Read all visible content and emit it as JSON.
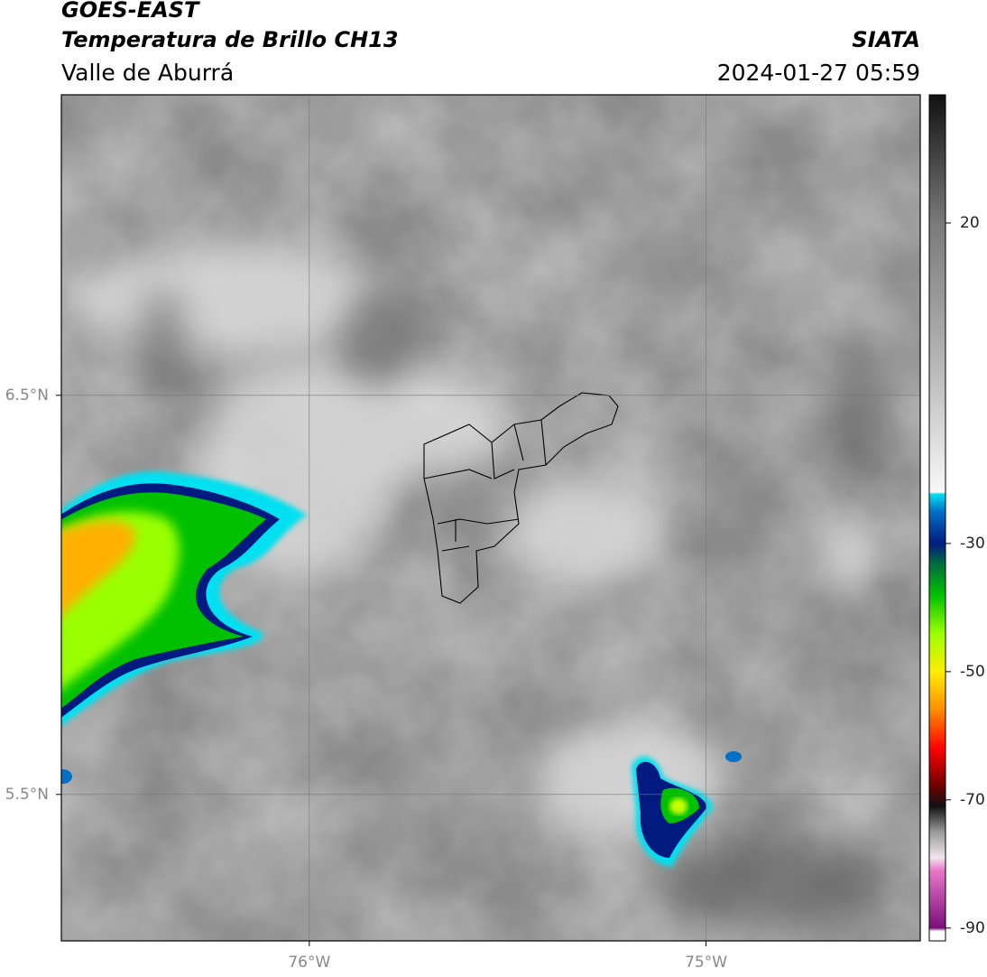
{
  "header": {
    "title": "GOES-EAST",
    "subtitle": "Temperatura de Brillo CH13",
    "region": "Valle de Aburrá",
    "source": "SIATA",
    "datetime": "2024-01-27 05:59"
  },
  "map": {
    "xlim": [
      -76.625,
      -74.46
    ],
    "ylim": [
      5.133,
      7.253
    ],
    "xticks": [
      {
        "value": -76,
        "label": "76°W"
      },
      {
        "value": -75,
        "label": "75°W"
      }
    ],
    "yticks": [
      {
        "value": 6.5,
        "label": "6.5°N"
      },
      {
        "value": 5.5,
        "label": "5.5°N"
      }
    ],
    "grid": true
  },
  "colorbar": {
    "lim": [
      -92,
      40
    ],
    "ticks": [
      20,
      -30,
      -50,
      -70,
      -90
    ],
    "stops": [
      {
        "value": -92,
        "color": "#ffffff"
      },
      {
        "value": -90.5,
        "color": "#ffffff"
      },
      {
        "value": -90,
        "color": "#7a0f7a"
      },
      {
        "value": -81,
        "color": "#e878c8"
      },
      {
        "value": -79,
        "color": "#f0e6ee"
      },
      {
        "value": -75,
        "color": "#9a9a9a"
      },
      {
        "value": -71,
        "color": "#111111"
      },
      {
        "value": -68,
        "color": "#6a0000"
      },
      {
        "value": -62,
        "color": "#ff0000"
      },
      {
        "value": -56,
        "color": "#ff8c00"
      },
      {
        "value": -50,
        "color": "#ffee00"
      },
      {
        "value": -44,
        "color": "#9aff00"
      },
      {
        "value": -38,
        "color": "#00c000"
      },
      {
        "value": -33,
        "color": "#006a40"
      },
      {
        "value": -30,
        "color": "#001a80"
      },
      {
        "value": -25,
        "color": "#0070c8"
      },
      {
        "value": -22.3,
        "color": "#00e0f0"
      },
      {
        "value": -22,
        "color": "#f8f8f8"
      },
      {
        "value": 0,
        "color": "#b0b0b0"
      },
      {
        "value": 20,
        "color": "#7a7a7a"
      },
      {
        "value": 40,
        "color": "#111111"
      }
    ]
  }
}
